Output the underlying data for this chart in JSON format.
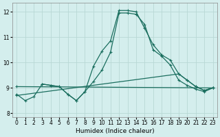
{
  "xlabel": "Humidex (Indice chaleur)",
  "xlim": [
    -0.5,
    23.5
  ],
  "ylim": [
    7.85,
    12.35
  ],
  "yticks": [
    8,
    9,
    10,
    11,
    12
  ],
  "xticks": [
    0,
    1,
    2,
    3,
    4,
    5,
    6,
    7,
    8,
    9,
    10,
    11,
    12,
    13,
    14,
    15,
    16,
    17,
    18,
    19,
    20,
    21,
    22,
    23
  ],
  "bg_color": "#d4eeed",
  "grid_color": "#b8d8d5",
  "line_color": "#1a6e5e",
  "lines": [
    {
      "x": [
        0,
        1,
        2,
        3,
        4,
        5,
        6,
        7,
        8,
        9,
        10,
        11,
        12,
        13,
        14,
        15,
        16,
        17,
        18,
        19,
        20,
        21,
        22,
        23
      ],
      "y": [
        8.75,
        8.5,
        8.65,
        9.15,
        9.1,
        9.05,
        8.75,
        8.5,
        8.85,
        9.85,
        10.45,
        10.85,
        12.05,
        12.05,
        12.0,
        11.35,
        10.7,
        10.3,
        10.1,
        9.55,
        9.3,
        9.05,
        8.9,
        9.0
      ]
    },
    {
      "x": [
        3,
        4,
        5,
        6,
        7,
        8,
        9,
        10,
        11,
        12,
        13,
        14,
        15,
        16,
        17,
        18,
        19,
        20,
        21,
        22,
        23
      ],
      "y": [
        9.15,
        9.1,
        9.05,
        8.75,
        8.5,
        8.85,
        9.25,
        9.7,
        10.4,
        11.95,
        11.95,
        11.9,
        11.5,
        10.5,
        10.25,
        9.9,
        9.3,
        9.1,
        8.95,
        8.85,
        9.0
      ]
    },
    {
      "x": [
        0,
        23
      ],
      "y": [
        9.05,
        9.0
      ]
    },
    {
      "x": [
        0,
        19,
        20,
        21,
        22,
        23
      ],
      "y": [
        8.7,
        9.55,
        9.3,
        9.05,
        8.9,
        9.0
      ]
    }
  ]
}
